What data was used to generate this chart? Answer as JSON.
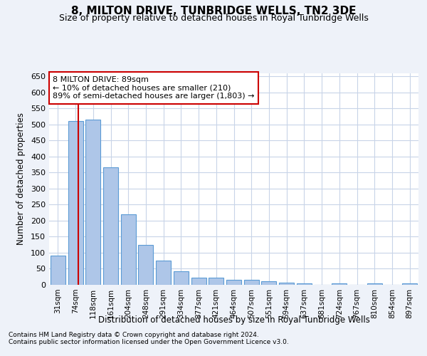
{
  "title": "8, MILTON DRIVE, TUNBRIDGE WELLS, TN2 3DE",
  "subtitle": "Size of property relative to detached houses in Royal Tunbridge Wells",
  "xlabel": "Distribution of detached houses by size in Royal Tunbridge Wells",
  "ylabel": "Number of detached properties",
  "footnote1": "Contains HM Land Registry data © Crown copyright and database right 2024.",
  "footnote2": "Contains public sector information licensed under the Open Government Licence v3.0.",
  "bar_labels": [
    "31sqm",
    "74sqm",
    "118sqm",
    "161sqm",
    "204sqm",
    "248sqm",
    "291sqm",
    "334sqm",
    "377sqm",
    "421sqm",
    "464sqm",
    "507sqm",
    "551sqm",
    "594sqm",
    "637sqm",
    "681sqm",
    "724sqm",
    "767sqm",
    "810sqm",
    "854sqm",
    "897sqm"
  ],
  "bar_values": [
    90,
    510,
    515,
    365,
    220,
    125,
    75,
    43,
    22,
    22,
    15,
    15,
    10,
    6,
    5,
    0,
    5,
    0,
    5,
    0,
    5
  ],
  "bar_color": "#aec6e8",
  "bar_edge_color": "#5b9bd5",
  "property_line_x": 1.15,
  "property_line_color": "#cc0000",
  "annotation_text": "8 MILTON DRIVE: 89sqm\n← 10% of detached houses are smaller (210)\n89% of semi-detached houses are larger (1,803) →",
  "annotation_box_color": "#cc0000",
  "ylim": [
    0,
    660
  ],
  "yticks": [
    0,
    50,
    100,
    150,
    200,
    250,
    300,
    350,
    400,
    450,
    500,
    550,
    600,
    650
  ],
  "background_color": "#eef2f9",
  "plot_background": "#ffffff",
  "grid_color": "#c8d4e8"
}
